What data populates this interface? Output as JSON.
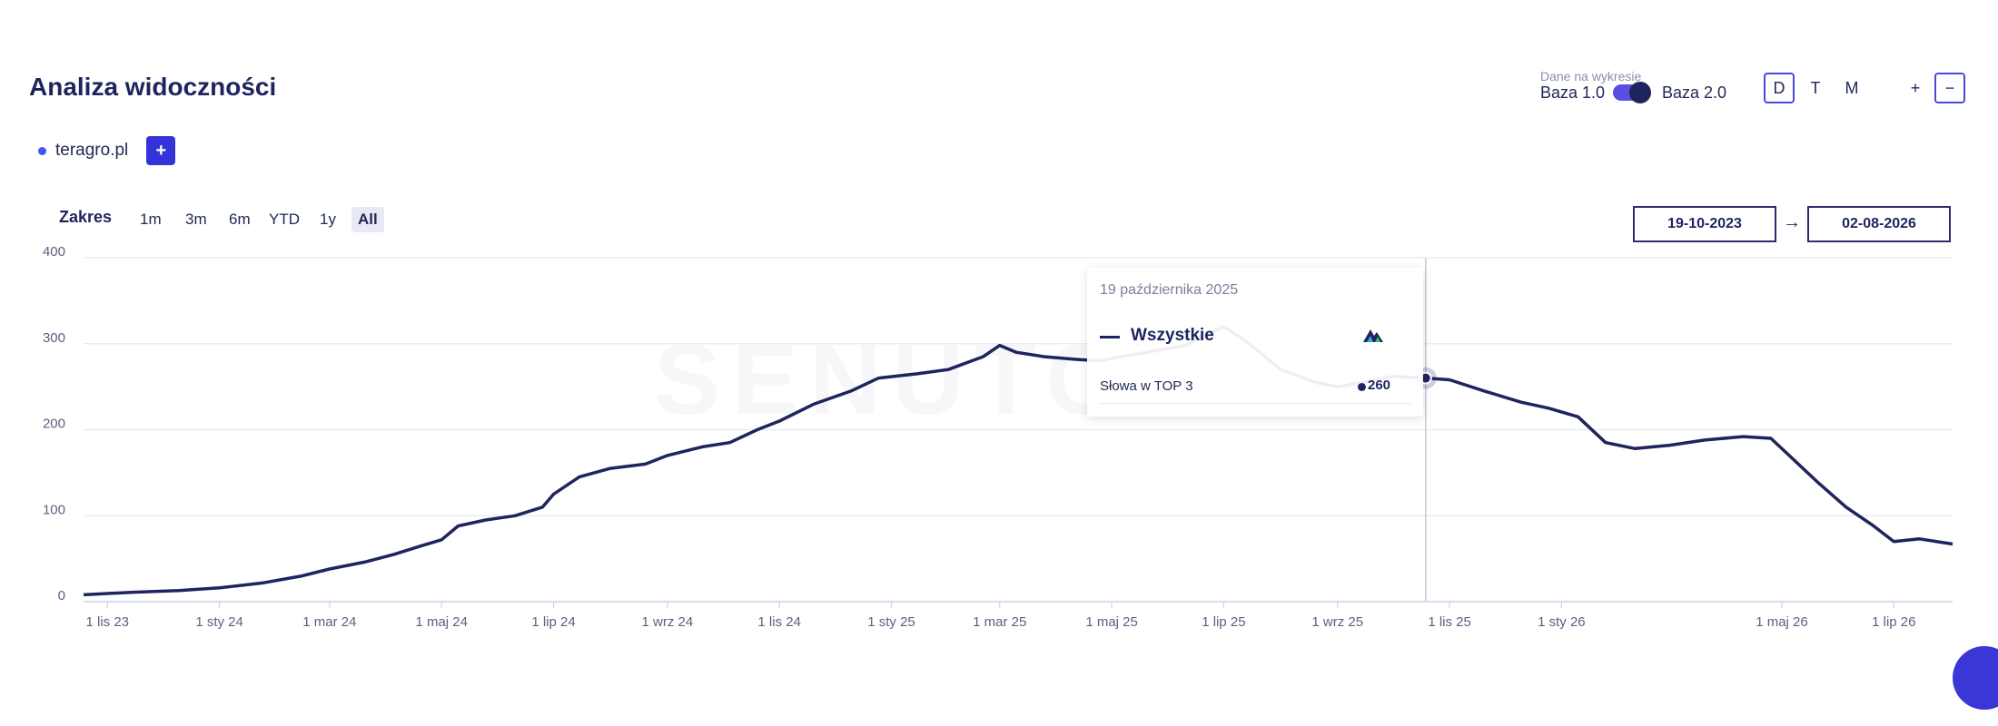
{
  "header": {
    "title": "Analiza widoczności"
  },
  "site": {
    "name": "teragro.pl",
    "add_label": "+"
  },
  "data_toggle": {
    "label": "Dane na wykresie",
    "left": "Baza 1.0",
    "right": "Baza 2.0"
  },
  "period_buttons": [
    "D",
    "T",
    "M"
  ],
  "zoom_buttons": {
    "plus": "+",
    "minus": "−"
  },
  "range": {
    "label": "Zakres",
    "options": [
      "1m",
      "3m",
      "6m",
      "YTD",
      "1y",
      "All"
    ],
    "active": "All"
  },
  "date_range": {
    "from": "19-10-2023",
    "arrow": "→",
    "to": "02-08-2026"
  },
  "tooltip": {
    "date": "19 października 2025",
    "series": "Wszystkie",
    "metric": "Słowa w TOP 3",
    "value": "260"
  },
  "colors": {
    "line": "#1e255e",
    "accent": "#3b37d6"
  },
  "chart_data": {
    "type": "line",
    "x_axis": {
      "type": "date",
      "range": [
        "2023-10-19",
        "2026-08-02"
      ],
      "ticks": [
        "1 lis 23",
        "1 sty 24",
        "1 mar 24",
        "1 maj 24",
        "1 lip 24",
        "1 wrz 24",
        "1 lis 24",
        "1 sty 25",
        "1 mar 25",
        "1 maj 25",
        "1 lip 25",
        "1 wrz 25",
        "1 lis 25",
        "1 sty 26",
        "1 maj 26",
        "1 lip 26"
      ],
      "tick_dates": [
        "2023-11-01",
        "2024-01-01",
        "2024-03-01",
        "2024-05-01",
        "2024-07-01",
        "2024-09-01",
        "2024-11-01",
        "2025-01-01",
        "2025-03-01",
        "2025-05-01",
        "2025-07-01",
        "2025-09-01",
        "2025-11-01",
        "2026-01-01",
        "2026-05-01",
        "2026-07-01"
      ]
    },
    "y_axis": {
      "range": [
        0,
        400
      ],
      "ticks": [
        0,
        100,
        200,
        300,
        400
      ]
    },
    "grid": true,
    "series": [
      {
        "name": "Wszystkie",
        "points": [
          [
            "2023-10-19",
            8
          ],
          [
            "2023-11-15",
            11
          ],
          [
            "2023-12-10",
            13
          ],
          [
            "2024-01-01",
            16
          ],
          [
            "2024-01-25",
            22
          ],
          [
            "2024-02-15",
            30
          ],
          [
            "2024-03-01",
            38
          ],
          [
            "2024-03-20",
            46
          ],
          [
            "2024-04-05",
            55
          ],
          [
            "2024-04-20",
            65
          ],
          [
            "2024-05-01",
            72
          ],
          [
            "2024-05-10",
            88
          ],
          [
            "2024-05-25",
            95
          ],
          [
            "2024-06-10",
            100
          ],
          [
            "2024-06-25",
            110
          ],
          [
            "2024-07-01",
            125
          ],
          [
            "2024-07-15",
            145
          ],
          [
            "2024-08-01",
            155
          ],
          [
            "2024-08-20",
            160
          ],
          [
            "2024-09-01",
            170
          ],
          [
            "2024-09-20",
            180
          ],
          [
            "2024-10-05",
            185
          ],
          [
            "2024-10-20",
            200
          ],
          [
            "2024-11-01",
            210
          ],
          [
            "2024-11-20",
            230
          ],
          [
            "2024-12-10",
            245
          ],
          [
            "2024-12-25",
            260
          ],
          [
            "2025-01-15",
            265
          ],
          [
            "2025-02-01",
            270
          ],
          [
            "2025-02-20",
            285
          ],
          [
            "2025-03-01",
            298
          ],
          [
            "2025-03-10",
            290
          ],
          [
            "2025-03-25",
            285
          ],
          [
            "2025-04-10",
            282
          ],
          [
            "2025-04-25",
            280
          ],
          [
            "2025-05-01",
            283
          ],
          [
            "2025-05-20",
            290
          ],
          [
            "2025-06-10",
            298
          ],
          [
            "2025-07-01",
            320
          ],
          [
            "2025-07-15",
            300
          ],
          [
            "2025-08-01",
            270
          ],
          [
            "2025-08-20",
            255
          ],
          [
            "2025-09-01",
            250
          ],
          [
            "2025-09-15",
            255
          ],
          [
            "2025-10-01",
            262
          ],
          [
            "2025-10-19",
            260
          ],
          [
            "2025-11-01",
            258
          ],
          [
            "2025-11-20",
            245
          ],
          [
            "2025-12-10",
            232
          ],
          [
            "2025-12-25",
            225
          ],
          [
            "2026-01-10",
            215
          ],
          [
            "2026-01-25",
            185
          ],
          [
            "2026-02-10",
            178
          ],
          [
            "2026-03-01",
            182
          ],
          [
            "2026-03-20",
            188
          ],
          [
            "2026-04-10",
            192
          ],
          [
            "2026-04-25",
            190
          ],
          [
            "2026-05-05",
            170
          ],
          [
            "2026-05-20",
            140
          ],
          [
            "2026-06-05",
            110
          ],
          [
            "2026-06-20",
            88
          ],
          [
            "2026-07-01",
            70
          ],
          [
            "2026-07-15",
            73
          ],
          [
            "2026-08-02",
            67
          ]
        ]
      }
    ]
  }
}
